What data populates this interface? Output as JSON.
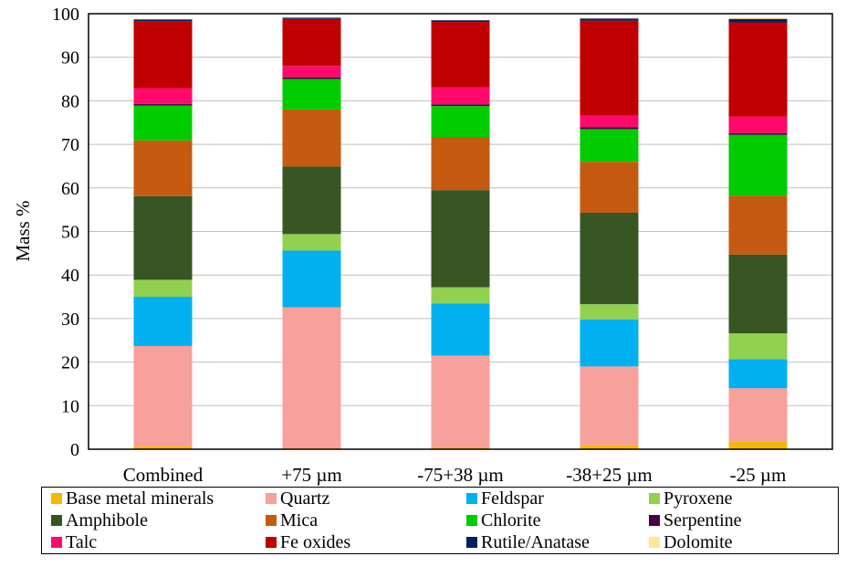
{
  "chart_data": {
    "type": "bar",
    "stacked": true,
    "title": "",
    "xlabel": "",
    "ylabel": "Mass %",
    "ylim": [
      0,
      100
    ],
    "yticks": [
      0,
      10,
      20,
      30,
      40,
      50,
      60,
      70,
      80,
      90,
      100
    ],
    "categories": [
      "Combined",
      "+75 µm",
      "-75+38 µm",
      "-38+25 µm",
      "-25 µm"
    ],
    "legend_position": "bottom",
    "series": [
      {
        "name": "Base metal minerals",
        "color": "#f5b800",
        "values": [
          0.7,
          0.2,
          0.5,
          1.0,
          1.7
        ]
      },
      {
        "name": "Quartz",
        "color": "#f8a09c",
        "values": [
          23.0,
          32.4,
          21.0,
          18.0,
          12.3
        ]
      },
      {
        "name": "Feldspar",
        "color": "#00b0f0",
        "values": [
          11.3,
          13.0,
          12.0,
          10.8,
          6.7
        ]
      },
      {
        "name": "Pyroxene",
        "color": "#92d050",
        "values": [
          3.9,
          3.8,
          3.7,
          3.5,
          5.9
        ]
      },
      {
        "name": "Amphibole",
        "color": "#375623",
        "values": [
          19.2,
          15.5,
          22.3,
          21.0,
          18.1
        ]
      },
      {
        "name": "Mica",
        "color": "#c55a11",
        "values": [
          12.8,
          13.1,
          12.2,
          11.7,
          13.5
        ]
      },
      {
        "name": "Chlorite",
        "color": "#00cc00",
        "values": [
          8.0,
          7.0,
          7.1,
          7.5,
          14.0
        ]
      },
      {
        "name": "Serpentine",
        "color": "#4a0048",
        "values": [
          0.4,
          0.4,
          0.4,
          0.4,
          0.4
        ]
      },
      {
        "name": "Talc",
        "color": "#ff0a6c",
        "values": [
          3.6,
          2.6,
          3.9,
          2.7,
          3.8
        ]
      },
      {
        "name": "Fe oxides",
        "color": "#c00000",
        "values": [
          15.4,
          10.8,
          15.0,
          21.8,
          21.6
        ]
      },
      {
        "name": "Rutile/Anatase",
        "color": "#002060",
        "values": [
          0.4,
          0.3,
          0.4,
          0.5,
          0.8
        ]
      },
      {
        "name": "Dolomite",
        "color": "#ffe699",
        "values": [
          0.1,
          0.1,
          0.1,
          0.2,
          0.3
        ]
      }
    ]
  }
}
